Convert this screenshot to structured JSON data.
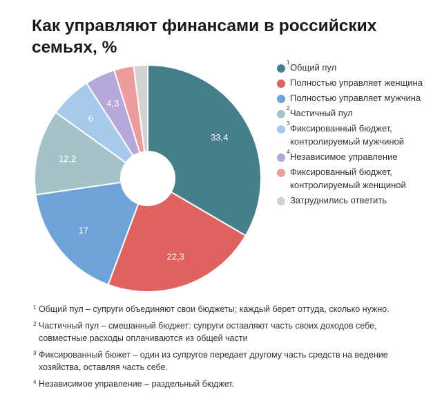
{
  "chart_data": {
    "type": "pie",
    "variant": "donut",
    "title": "Как управляют финансами в российских семьях, %",
    "categories": [
      "Общий пул",
      "Полностью управляет женщина",
      "Полностью управляет мужчина",
      "Частичный пул",
      "Фиксированный бюджет, контролируемый мужчиной",
      "Независимое управление",
      "Фиксированный бюджет, контролируемый женщиной",
      "Затруднились ответить"
    ],
    "values": [
      33.4,
      22.3,
      17,
      12.2,
      6,
      4.3,
      2.8,
      2
    ],
    "value_labels": [
      "33,4",
      "22,3",
      "17",
      "12,2",
      "6",
      "4,3",
      "",
      ""
    ],
    "colors": [
      "#467f8c",
      "#e0625f",
      "#6ea3da",
      "#a3c3c6",
      "#a6c9ec",
      "#b4a8d8",
      "#ec9c9c",
      "#d2d2d2"
    ],
    "legend_position": "right",
    "legend_notes": [
      "1",
      "",
      "",
      "2",
      "3",
      "4",
      "",
      ""
    ]
  },
  "footnotes": [
    {
      "num": "1",
      "text": "Общий пул – супруги объединяют свои бюджеты; каждый берет оттуда, сколько нужно."
    },
    {
      "num": "2",
      "text": "Частичный пул – смешанный бюджет: супруги оставляют часть своих доходов себе, совместные расходы оплачиваются из общей части"
    },
    {
      "num": "3",
      "text": "Фиксированный бюжет – один из супругов передает другому часть средств на ведение хозяйства, оставляя часть себе."
    },
    {
      "num": "4",
      "text": "Независимое управление – раздельный бюджет."
    }
  ]
}
